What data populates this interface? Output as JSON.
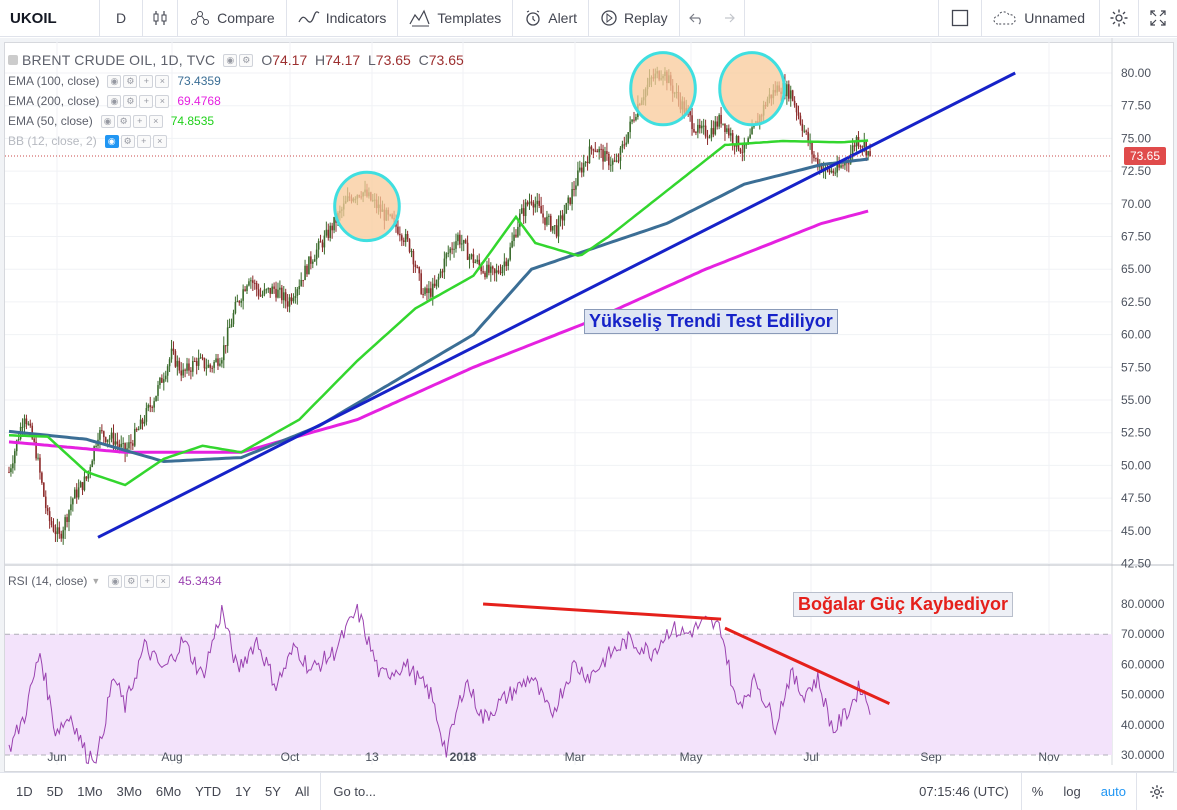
{
  "toolbar": {
    "symbol": "UKOIL",
    "interval": "D",
    "compare": "Compare",
    "indicators": "Indicators",
    "templates": "Templates",
    "alert": "Alert",
    "replay": "Replay",
    "layout_name": "Unnamed"
  },
  "legend": {
    "title": "BRENT CRUDE OIL, 1D, TVC",
    "open_label": "O",
    "open": "74.17",
    "high_label": "H",
    "high": "74.17",
    "low_label": "L",
    "low": "73.65",
    "close_label": "C",
    "close": "73.65",
    "ema100_label": "EMA (100, close)",
    "ema100": "73.4359",
    "ema200_label": "EMA (200, close)",
    "ema200": "69.4768",
    "ema50_label": "EMA (50, close)",
    "ema50": "74.8535",
    "bb_label": "BB (12, close, 2)",
    "rsi_label": "RSI (14, close)",
    "rsi": "45.3434"
  },
  "annotations": {
    "trend": "Yükseliş Trendi Test Ediliyor",
    "bulls": "Boğalar Güç Kaybediyor"
  },
  "price_axis": [
    "80.00",
    "77.50",
    "75.00",
    "72.50",
    "70.00",
    "67.50",
    "65.00",
    "62.50",
    "60.00",
    "57.50",
    "55.00",
    "52.50",
    "50.00",
    "47.50",
    "45.00",
    "42.50"
  ],
  "rsi_axis": [
    "80.0000",
    "70.0000",
    "60.0000",
    "50.0000",
    "40.0000",
    "30.0000"
  ],
  "current_price_tag": "73.65",
  "time_axis": [
    "Jun",
    "Aug",
    "Oct",
    "13",
    "2018",
    "Mar",
    "May",
    "Jul",
    "Sep",
    "Nov"
  ],
  "bottom": {
    "ranges": [
      "1D",
      "5D",
      "1Mo",
      "3Mo",
      "6Mo",
      "YTD",
      "1Y",
      "5Y",
      "All"
    ],
    "goto": "Go to...",
    "clock": "07:15:46 (UTC)",
    "percent": "%",
    "log": "log",
    "auto": "auto"
  },
  "colors": {
    "up": "#3a6b2c",
    "down": "#8c2a2a",
    "ema50": "#33d62e",
    "ema100": "#3b6e95",
    "ema200": "#e521e0",
    "trendline": "#1622c8",
    "resistance": "#e5201b",
    "rsi_line": "#9a42b0",
    "rsi_band": "#f3e3fb",
    "highlight_fill": "#f8c99a",
    "highlight_stroke": "#3fdfe0",
    "price_tag": "#e04b4b"
  },
  "chart_data": {
    "type": "candlestick",
    "price_range": [
      42.5,
      81.5
    ],
    "rsi_range": [
      25,
      81
    ],
    "anchors": [
      [
        0,
        49.5
      ],
      [
        8,
        54
      ],
      [
        14,
        51
      ],
      [
        20,
        46
      ],
      [
        26,
        44.5
      ],
      [
        33,
        47.5
      ],
      [
        40,
        49
      ],
      [
        46,
        52.5
      ],
      [
        54,
        52
      ],
      [
        60,
        51
      ],
      [
        68,
        53
      ],
      [
        76,
        55.5
      ],
      [
        84,
        58.5
      ],
      [
        90,
        57
      ],
      [
        97,
        58
      ],
      [
        104,
        57.5
      ],
      [
        110,
        58.5
      ],
      [
        117,
        62
      ],
      [
        124,
        64.5
      ],
      [
        130,
        63
      ],
      [
        137,
        63.5
      ],
      [
        144,
        62.5
      ],
      [
        150,
        64
      ],
      [
        157,
        66
      ],
      [
        164,
        67.5
      ],
      [
        170,
        69
      ],
      [
        176,
        70.5
      ],
      [
        182,
        71
      ],
      [
        189,
        70
      ],
      [
        195,
        69
      ],
      [
        202,
        68
      ],
      [
        208,
        66.5
      ],
      [
        214,
        63
      ],
      [
        220,
        63.5
      ],
      [
        226,
        66
      ],
      [
        232,
        67.5
      ],
      [
        238,
        66
      ],
      [
        245,
        65
      ],
      [
        251,
        64.5
      ],
      [
        258,
        66
      ],
      [
        264,
        69
      ],
      [
        270,
        70.5
      ],
      [
        276,
        69
      ],
      [
        283,
        68
      ],
      [
        289,
        70
      ],
      [
        295,
        72.5
      ],
      [
        302,
        74.5
      ],
      [
        308,
        73.5
      ],
      [
        314,
        73
      ],
      [
        320,
        75.5
      ],
      [
        326,
        78
      ],
      [
        332,
        79.5
      ],
      [
        338,
        80.2
      ],
      [
        344,
        78.5
      ],
      [
        350,
        77
      ],
      [
        356,
        75.5
      ],
      [
        362,
        75.5
      ],
      [
        368,
        76.5
      ],
      [
        374,
        75
      ],
      [
        380,
        74
      ],
      [
        386,
        76
      ],
      [
        392,
        78
      ],
      [
        398,
        79
      ],
      [
        404,
        78.5
      ],
      [
        410,
        76
      ],
      [
        416,
        73.5
      ],
      [
        422,
        72.5
      ],
      [
        428,
        72.5
      ],
      [
        434,
        73.5
      ],
      [
        438,
        75
      ],
      [
        442,
        74.5
      ],
      [
        445,
        73.65
      ]
    ],
    "ema50_anchors": [
      [
        0,
        52.3
      ],
      [
        20,
        52.2
      ],
      [
        40,
        49.5
      ],
      [
        60,
        48.5
      ],
      [
        80,
        50.5
      ],
      [
        100,
        51.5
      ],
      [
        120,
        51
      ],
      [
        150,
        53.5
      ],
      [
        180,
        58
      ],
      [
        210,
        62
      ],
      [
        240,
        64.5
      ],
      [
        262,
        69
      ],
      [
        272,
        67
      ],
      [
        295,
        66
      ],
      [
        310,
        67.5
      ],
      [
        340,
        71
      ],
      [
        370,
        74.5
      ],
      [
        400,
        74.8
      ],
      [
        430,
        74.7
      ],
      [
        445,
        74.85
      ]
    ],
    "ema100_anchors": [
      [
        0,
        52.6
      ],
      [
        40,
        52
      ],
      [
        80,
        50.3
      ],
      [
        120,
        50.6
      ],
      [
        160,
        53
      ],
      [
        200,
        56.5
      ],
      [
        240,
        60
      ],
      [
        270,
        65
      ],
      [
        300,
        66.5
      ],
      [
        340,
        68.5
      ],
      [
        380,
        71.5
      ],
      [
        420,
        73
      ],
      [
        445,
        73.44
      ]
    ],
    "ema200_anchors": [
      [
        0,
        51.8
      ],
      [
        60,
        51
      ],
      [
        120,
        51
      ],
      [
        180,
        53.5
      ],
      [
        240,
        57.5
      ],
      [
        300,
        61
      ],
      [
        360,
        65
      ],
      [
        420,
        68.5
      ],
      [
        445,
        69.48
      ]
    ],
    "trendline": [
      [
        46,
        44.5
      ],
      [
        520,
        80
      ]
    ],
    "resistance_line": [
      [
        245,
        80
      ],
      [
        368,
        75
      ]
    ],
    "rsi_anchors": [
      [
        0,
        32
      ],
      [
        8,
        43
      ],
      [
        16,
        64
      ],
      [
        24,
        38
      ],
      [
        32,
        43
      ],
      [
        40,
        30
      ],
      [
        46,
        30
      ],
      [
        54,
        56
      ],
      [
        60,
        46
      ],
      [
        70,
        66
      ],
      [
        80,
        58
      ],
      [
        90,
        68
      ],
      [
        100,
        56
      ],
      [
        110,
        78
      ],
      [
        118,
        58
      ],
      [
        128,
        68
      ],
      [
        138,
        53
      ],
      [
        148,
        66
      ],
      [
        156,
        58
      ],
      [
        168,
        64
      ],
      [
        180,
        78
      ],
      [
        192,
        56
      ],
      [
        205,
        60
      ],
      [
        218,
        50
      ],
      [
        226,
        31
      ],
      [
        236,
        55
      ],
      [
        245,
        42
      ],
      [
        255,
        48
      ],
      [
        270,
        56
      ],
      [
        280,
        43
      ],
      [
        292,
        60
      ],
      [
        300,
        56
      ],
      [
        310,
        63
      ],
      [
        320,
        68
      ],
      [
        332,
        64
      ],
      [
        342,
        72
      ],
      [
        350,
        70
      ],
      [
        360,
        74
      ],
      [
        368,
        72
      ],
      [
        376,
        46
      ],
      [
        386,
        55
      ],
      [
        396,
        40
      ],
      [
        404,
        57
      ],
      [
        410,
        50
      ],
      [
        418,
        55
      ],
      [
        426,
        38
      ],
      [
        434,
        45
      ],
      [
        440,
        53
      ],
      [
        445,
        45.34
      ]
    ],
    "bulls_line": [
      [
        370,
        72
      ],
      [
        455,
        47
      ]
    ],
    "highlights": [
      [
        185,
        69.8,
        17,
        18
      ],
      [
        338,
        78.8,
        17,
        19
      ],
      [
        384,
        78.8,
        17,
        19
      ]
    ]
  }
}
